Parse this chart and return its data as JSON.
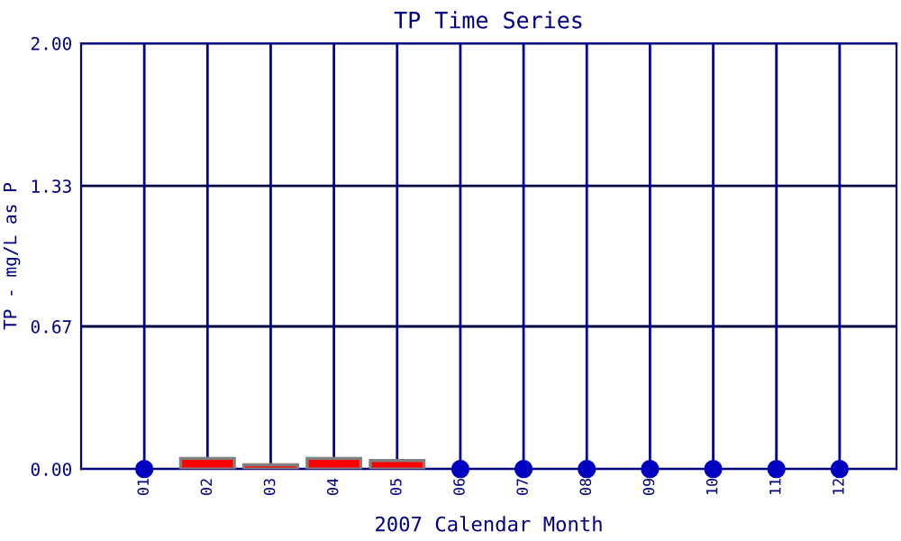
{
  "chart_data": {
    "type": "bar",
    "title": "TP Time Series",
    "xlabel": "2007 Calendar Month",
    "ylabel": "TP - mg/L as P",
    "categories": [
      "01",
      "02",
      "03",
      "04",
      "05",
      "06",
      "07",
      "08",
      "09",
      "10",
      "11",
      "12"
    ],
    "series": [
      {
        "color": "#ff0000",
        "values": [
          null,
          0.05,
          0.02,
          0.05,
          0.04,
          null,
          null,
          null,
          null,
          null,
          null,
          null
        ]
      },
      {
        "type": "scatter",
        "color": "#0000c0",
        "x": [
          "01",
          "06",
          "07",
          "08",
          "09",
          "10",
          "11",
          "12"
        ],
        "values": [
          0,
          0,
          0,
          0,
          0,
          0,
          0,
          0
        ]
      }
    ],
    "ylim": [
      0,
      2
    ],
    "yticks": [
      {
        "value": 0,
        "label": "0.00"
      },
      {
        "value": 0.67,
        "label": "0.67"
      },
      {
        "value": 1.33,
        "label": "1.33"
      },
      {
        "value": 2,
        "label": "2.00"
      }
    ],
    "grid": true,
    "marker": "circle"
  }
}
